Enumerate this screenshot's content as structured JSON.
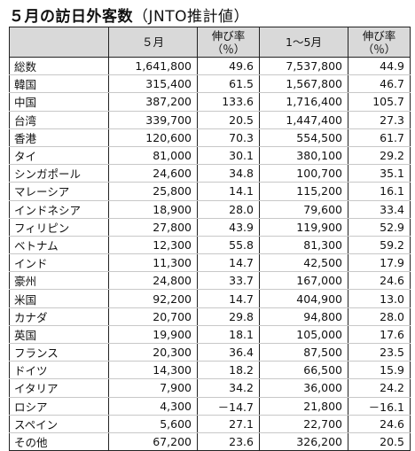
{
  "title": "５月の訪日外客数",
  "subtitle": "（JNTO推計値）",
  "headers": [
    "",
    "５月",
    "伸び率\n（％）",
    "1～5月",
    "伸び率\n（％）"
  ],
  "rows": [
    [
      "総数",
      "1,641,800",
      "49.6",
      "7,537,800",
      "44.9"
    ],
    [
      "韓国",
      "315,400",
      "61.5",
      "1,567,800",
      "46.7"
    ],
    [
      "中国",
      "387,200",
      "133.6",
      "1,716,400",
      "105.7"
    ],
    [
      "台湾",
      "339,700",
      "20.5",
      "1,447,400",
      "27.3"
    ],
    [
      "香港",
      "120,600",
      "70.3",
      "554,500",
      "61.7"
    ],
    [
      "タイ",
      "81,000",
      "30.1",
      "380,100",
      "29.2"
    ],
    [
      "シンガポール",
      "24,600",
      "34.8",
      "100,700",
      "35.1"
    ],
    [
      "マレーシア",
      "25,800",
      "14.1",
      "115,200",
      "16.1"
    ],
    [
      "インドネシア",
      "18,900",
      "28.0",
      "79,600",
      "33.4"
    ],
    [
      "フィリピン",
      "27,800",
      "43.9",
      "119,900",
      "52.9"
    ],
    [
      "ベトナム",
      "12,300",
      "55.8",
      "81,300",
      "59.2"
    ],
    [
      "インド",
      "11,300",
      "14.7",
      "42,500",
      "17.9"
    ],
    [
      "豪州",
      "24,800",
      "33.7",
      "167,000",
      "24.6"
    ],
    [
      "米国",
      "92,200",
      "14.7",
      "404,900",
      "13.0"
    ],
    [
      "カナダ",
      "20,700",
      "29.8",
      "94,800",
      "28.0"
    ],
    [
      "英国",
      "19,900",
      "18.1",
      "105,000",
      "17.6"
    ],
    [
      "フランス",
      "20,300",
      "36.4",
      "87,500",
      "23.5"
    ],
    [
      "ドイツ",
      "14,300",
      "18.2",
      "66,500",
      "15.9"
    ],
    [
      "イタリア",
      "7,900",
      "34.2",
      "36,000",
      "24.2"
    ],
    [
      "ロシア",
      "4,300",
      "－14.7",
      "21,800",
      "－16.1"
    ],
    [
      "スペイン",
      "5,600",
      "27.1",
      "22,700",
      "24.6"
    ],
    [
      "その他",
      "67,200",
      "23.6",
      "326,200",
      "20.5"
    ]
  ]
}
